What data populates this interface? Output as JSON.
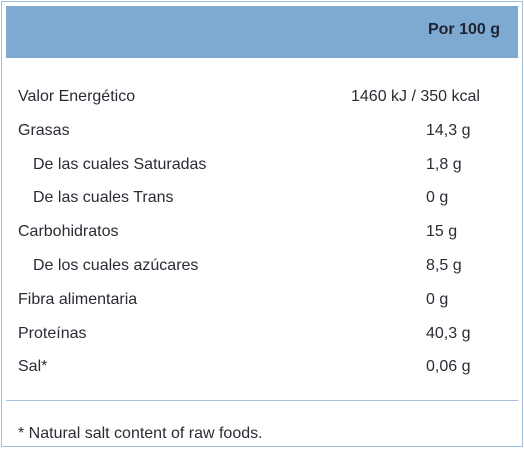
{
  "header": {
    "per_label": "Por 100 g"
  },
  "nutrients": [
    {
      "label": "Valor Energético",
      "value": "1460 kJ / 350 kcal"
    },
    {
      "label": "Grasas",
      "value": "14,3 g"
    },
    {
      "label": "De las cuales Saturadas",
      "value": "1,8 g"
    },
    {
      "label": "De las cuales Trans",
      "value": "0 g"
    },
    {
      "label": "Carbohidratos",
      "value": "15 g"
    },
    {
      "label": "De los cuales azúcares",
      "value": "8,5 g"
    },
    {
      "label": "Fibra alimentaria",
      "value": "0 g"
    },
    {
      "label": "Proteínas",
      "value": "40,3 g"
    },
    {
      "label": "Sal*",
      "value": "0,06 g"
    }
  ],
  "footnote": "* Natural salt content of raw foods.",
  "colors": {
    "header_background": "#7ea9d1",
    "border": "#9fbfdc",
    "text": "#2b2b36"
  }
}
